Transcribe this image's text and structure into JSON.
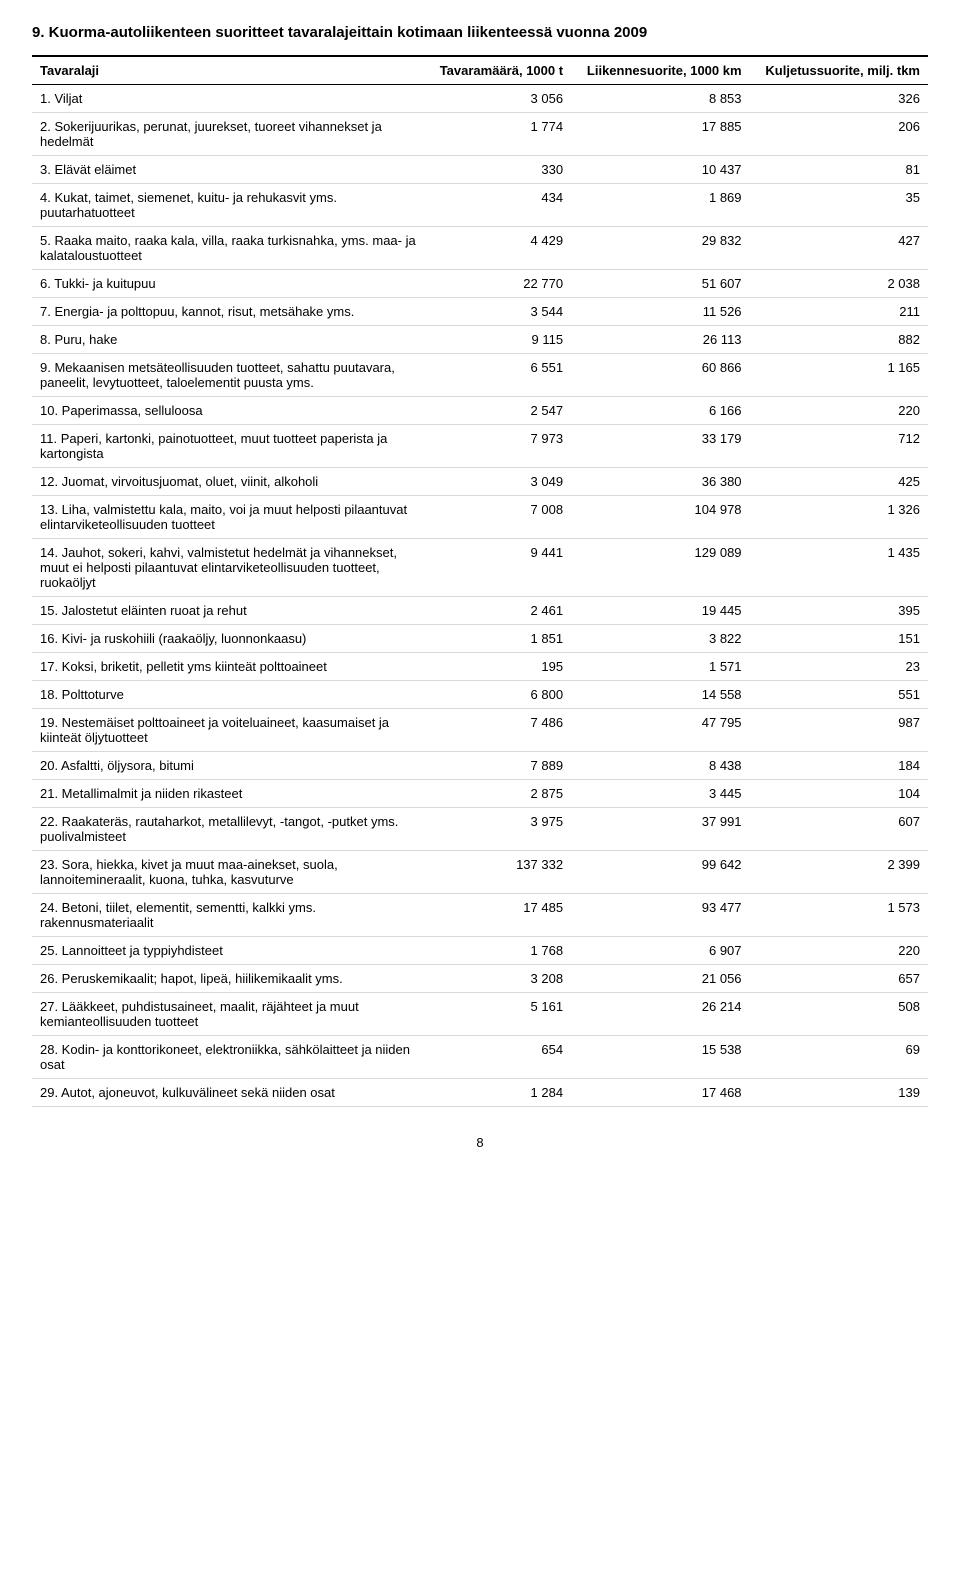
{
  "title": "9. Kuorma-autoliikenteen suoritteet tavaralajeittain kotimaan liikenteessä vuonna 2009",
  "columns": [
    {
      "label": "Tavaralaji",
      "align": "left"
    },
    {
      "label": "Tavaramäärä, 1000 t",
      "align": "right"
    },
    {
      "label": "Liikennesuorite, 1000 km",
      "align": "right"
    },
    {
      "label": "Kuljetussuorite, milj. tkm",
      "align": "right"
    }
  ],
  "rows": [
    {
      "label": "1. Viljat",
      "v1": "3 056",
      "v2": "8 853",
      "v3": "326"
    },
    {
      "label": "2. Sokerijuurikas, perunat, juurekset, tuoreet vihannekset ja hedelmät",
      "v1": "1 774",
      "v2": "17 885",
      "v3": "206"
    },
    {
      "label": "3. Elävät eläimet",
      "v1": "330",
      "v2": "10 437",
      "v3": "81"
    },
    {
      "label": "4. Kukat, taimet, siemenet, kuitu- ja rehukasvit yms. puutarhatuotteet",
      "v1": "434",
      "v2": "1 869",
      "v3": "35"
    },
    {
      "label": "5. Raaka maito, raaka kala, villa, raaka turkisnahka, yms. maa- ja kalataloustuotteet",
      "v1": "4 429",
      "v2": "29 832",
      "v3": "427"
    },
    {
      "label": "6. Tukki- ja kuitupuu",
      "v1": "22 770",
      "v2": "51 607",
      "v3": "2 038"
    },
    {
      "label": "7. Energia- ja polttopuu, kannot, risut, metsähake yms.",
      "v1": "3 544",
      "v2": "11 526",
      "v3": "211"
    },
    {
      "label": "8. Puru, hake",
      "v1": "9 115",
      "v2": "26 113",
      "v3": "882"
    },
    {
      "label": "9. Mekaanisen metsäteollisuuden tuotteet, sahattu puutavara, paneelit, levytuotteet, taloelementit puusta yms.",
      "v1": "6 551",
      "v2": "60 866",
      "v3": "1 165"
    },
    {
      "label": "10. Paperimassa, selluloosa",
      "v1": "2 547",
      "v2": "6 166",
      "v3": "220"
    },
    {
      "label": "11. Paperi, kartonki, painotuotteet, muut tuotteet paperista ja kartongista",
      "v1": "7 973",
      "v2": "33 179",
      "v3": "712"
    },
    {
      "label": "12. Juomat, virvoitusjuomat, oluet, viinit, alkoholi",
      "v1": "3 049",
      "v2": "36 380",
      "v3": "425"
    },
    {
      "label": "13. Liha, valmistettu kala, maito, voi ja muut helposti pilaantuvat elintarviketeollisuuden tuotteet",
      "v1": "7 008",
      "v2": "104 978",
      "v3": "1 326"
    },
    {
      "label": "14. Jauhot, sokeri, kahvi, valmistetut hedelmät ja vihannekset, muut ei helposti pilaantuvat elintarviketeollisuuden tuotteet, ruokaöljyt",
      "v1": "9 441",
      "v2": "129 089",
      "v3": "1 435"
    },
    {
      "label": "15. Jalostetut eläinten ruoat ja rehut",
      "v1": "2 461",
      "v2": "19 445",
      "v3": "395"
    },
    {
      "label": "16. Kivi- ja ruskohiili (raakaöljy, luonnonkaasu)",
      "v1": "1 851",
      "v2": "3 822",
      "v3": "151"
    },
    {
      "label": "17. Koksi, briketit, pelletit yms kiinteät polttoaineet",
      "v1": "195",
      "v2": "1 571",
      "v3": "23"
    },
    {
      "label": "18. Polttoturve",
      "v1": "6 800",
      "v2": "14 558",
      "v3": "551"
    },
    {
      "label": "19. Nestemäiset polttoaineet ja voiteluaineet, kaasumaiset ja kiinteät öljytuotteet",
      "v1": "7 486",
      "v2": "47 795",
      "v3": "987"
    },
    {
      "label": "20. Asfaltti, öljysora, bitumi",
      "v1": "7 889",
      "v2": "8 438",
      "v3": "184"
    },
    {
      "label": "21. Metallimalmit ja niiden rikasteet",
      "v1": "2 875",
      "v2": "3 445",
      "v3": "104"
    },
    {
      "label": "22. Raakateräs, rautaharkot, metallilevyt, -tangot, -putket yms. puolivalmisteet",
      "v1": "3 975",
      "v2": "37 991",
      "v3": "607"
    },
    {
      "label": "23. Sora, hiekka, kivet ja muut maa-ainekset, suola, lannoitemineraalit, kuona, tuhka, kasvuturve",
      "v1": "137 332",
      "v2": "99 642",
      "v3": "2 399"
    },
    {
      "label": "24. Betoni, tiilet, elementit, sementti, kalkki yms. rakennusmateriaalit",
      "v1": "17 485",
      "v2": "93 477",
      "v3": "1 573"
    },
    {
      "label": "25. Lannoitteet ja typpiyhdisteet",
      "v1": "1 768",
      "v2": "6 907",
      "v3": "220"
    },
    {
      "label": "26. Peruskemikaalit; hapot, lipeä, hiilikemikaalit yms.",
      "v1": "3 208",
      "v2": "21 056",
      "v3": "657"
    },
    {
      "label": "27. Lääkkeet, puhdistusaineet, maalit, räjähteet ja muut kemianteollisuuden tuotteet",
      "v1": "5 161",
      "v2": "26 214",
      "v3": "508"
    },
    {
      "label": "28. Kodin- ja konttorikoneet, elektroniikka, sähkölaitteet ja niiden osat",
      "v1": "654",
      "v2": "15 538",
      "v3": "69"
    },
    {
      "label": "29. Autot, ajoneuvot, kulkuvälineet sekä niiden osat",
      "v1": "1 284",
      "v2": "17 468",
      "v3": "139"
    }
  ],
  "page_number": "8"
}
